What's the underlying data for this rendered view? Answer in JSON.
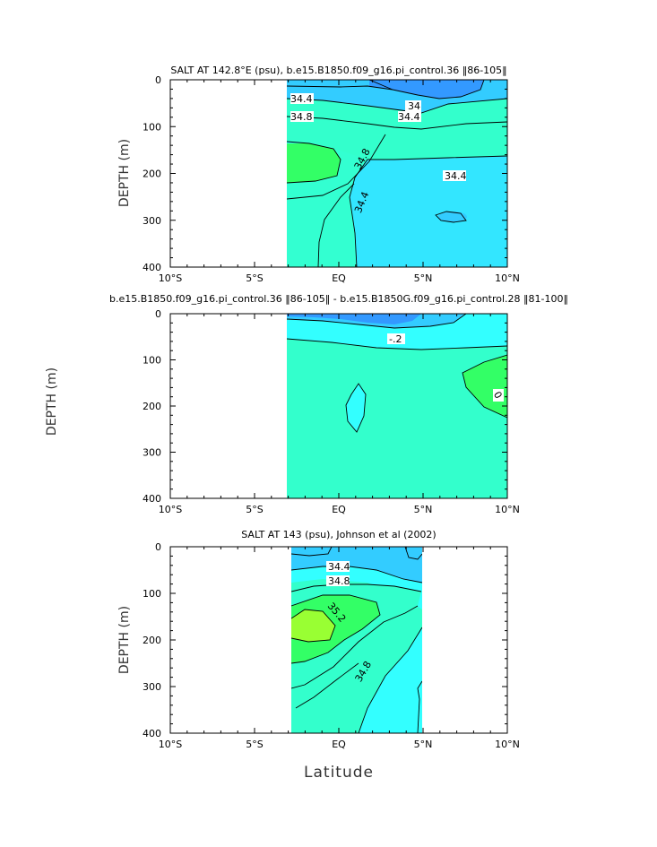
{
  "chart_data": [
    {
      "type": "contour",
      "title": "SALT AT 142.8°E (psu), b.e15.B1850.f09_g16.pi_control.36 ‖86-105‖",
      "xlabel": "",
      "ylabel": "DEPTH (m)",
      "xlim": [
        -10,
        10
      ],
      "ylim": [
        0,
        400
      ],
      "x_ticks": [
        "10°S",
        "5°S",
        "EQ",
        "5°N",
        "10°N"
      ],
      "y_ticks": [
        "0",
        "100",
        "200",
        "300",
        "400"
      ],
      "data_lon_range": [
        -3,
        10
      ],
      "contour_labels": [
        "34.4",
        "34",
        "34.4",
        "34.8",
        "34.8",
        "34.4",
        "34.4"
      ],
      "colors": {
        "fresh": "#3399ff",
        "low": "#33ccff",
        "mid": "#33ffff",
        "high": "#33ffcc",
        "max": "#33ff66"
      }
    },
    {
      "type": "contour",
      "title": "b.e15.B1850.f09_g16.pi_control.36 ‖86-105‖ - b.e15.B1850G.f09_g16.pi_control.28 ‖81-100‖",
      "xlabel": "",
      "ylabel": "DEPTH (m)",
      "xlim": [
        -10,
        10
      ],
      "ylim": [
        0,
        400
      ],
      "x_ticks": [
        "10°S",
        "5°S",
        "EQ",
        "5°N",
        "10°N"
      ],
      "y_ticks": [
        "0",
        "100",
        "200",
        "300",
        "400"
      ],
      "data_lon_range": [
        -3,
        10
      ],
      "contour_labels": [
        "-.2",
        "0"
      ],
      "colors": {
        "neg2": "#3399ff",
        "neg1": "#33ccff",
        "near0": "#33ffff",
        "zero": "#33ffcc",
        "pos": "#33ff66"
      }
    },
    {
      "type": "contour",
      "title": "SALT AT 143 (psu), Johnson et al (2002)",
      "xlabel": "Latitude",
      "ylabel": "DEPTH (m)",
      "xlim": [
        -10,
        10
      ],
      "ylim": [
        0,
        400
      ],
      "x_ticks": [
        "10°S",
        "5°S",
        "EQ",
        "5°N",
        "10°N"
      ],
      "y_ticks": [
        "0",
        "100",
        "200",
        "300",
        "400"
      ],
      "data_lon_range": [
        -2.7,
        5
      ],
      "contour_labels": [
        "34.4",
        "34.8",
        "35.2",
        "34.8"
      ],
      "colors": {
        "low": "#33ccff",
        "mid": "#33ffff",
        "high": "#33ffcc",
        "higher": "#33ff66",
        "max": "#99ff33"
      }
    }
  ]
}
